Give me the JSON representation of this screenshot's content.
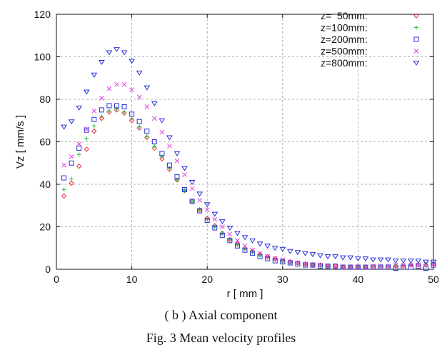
{
  "chart_data": {
    "type": "scatter",
    "xlabel": "r [ mm ]",
    "ylabel": "Vz [ mm/s ]",
    "xlim": [
      0,
      50
    ],
    "ylim": [
      0,
      120
    ],
    "xticks": [
      0,
      10,
      20,
      30,
      40,
      50
    ],
    "yticks": [
      0,
      20,
      40,
      60,
      80,
      100,
      120
    ],
    "grid": true,
    "legend_position": "top-right",
    "series": [
      {
        "name": "z=  50mm:",
        "marker": "diamond",
        "color": "#e8323c",
        "points": [
          [
            1,
            34.5
          ],
          [
            2,
            40.5
          ],
          [
            3,
            48.5
          ],
          [
            4,
            56.5
          ],
          [
            5,
            65
          ],
          [
            6,
            71
          ],
          [
            7,
            74
          ],
          [
            8,
            75
          ],
          [
            9,
            73.5
          ],
          [
            10,
            70
          ],
          [
            11,
            66.5
          ],
          [
            12,
            62
          ],
          [
            13,
            57
          ],
          [
            14,
            52
          ],
          [
            15,
            47
          ],
          [
            16,
            42
          ],
          [
            17,
            37
          ],
          [
            18,
            32
          ],
          [
            19,
            28
          ],
          [
            20,
            24
          ],
          [
            21,
            20.5
          ],
          [
            22,
            17
          ],
          [
            23,
            14
          ],
          [
            24,
            12
          ],
          [
            25,
            10
          ],
          [
            26,
            8.5
          ],
          [
            27,
            7
          ],
          [
            28,
            6
          ],
          [
            29,
            5
          ],
          [
            30,
            4
          ],
          [
            31,
            3.5
          ],
          [
            32,
            3
          ],
          [
            33,
            2.5
          ],
          [
            34,
            2
          ],
          [
            35,
            2
          ],
          [
            36,
            1.5
          ],
          [
            37,
            1.5
          ],
          [
            38,
            1
          ],
          [
            39,
            1
          ],
          [
            40,
            1
          ],
          [
            41,
            1
          ],
          [
            42,
            1
          ],
          [
            43,
            1
          ],
          [
            44,
            1
          ],
          [
            45,
            1.5
          ],
          [
            46,
            1.5
          ],
          [
            47,
            2
          ],
          [
            48,
            2
          ],
          [
            49,
            2
          ],
          [
            50,
            2.5
          ]
        ]
      },
      {
        "name": "z=100mm:",
        "marker": "plus",
        "color": "#22c03c",
        "points": [
          [
            1,
            37.5
          ],
          [
            2,
            42.5
          ],
          [
            3,
            54
          ],
          [
            4,
            61.5
          ],
          [
            5,
            67.5
          ],
          [
            6,
            72
          ],
          [
            7,
            74.5
          ],
          [
            8,
            75.5
          ],
          [
            9,
            74
          ],
          [
            10,
            71
          ],
          [
            11,
            67
          ],
          [
            12,
            62.5
          ],
          [
            13,
            58
          ],
          [
            14,
            53
          ],
          [
            15,
            47.5
          ],
          [
            16,
            42
          ],
          [
            17,
            37
          ],
          [
            18,
            32
          ],
          [
            19,
            28
          ],
          [
            20,
            24
          ],
          [
            21,
            20
          ],
          [
            22,
            17
          ],
          [
            23,
            14
          ],
          [
            24,
            11.5
          ],
          [
            25,
            9.5
          ],
          [
            26,
            8
          ],
          [
            27,
            6.5
          ],
          [
            28,
            5.5
          ],
          [
            29,
            4.5
          ],
          [
            30,
            4
          ],
          [
            31,
            3
          ],
          [
            32,
            2.5
          ],
          [
            33,
            2
          ],
          [
            34,
            2
          ],
          [
            35,
            1.5
          ],
          [
            36,
            1.5
          ],
          [
            37,
            0.5
          ],
          [
            38,
            1
          ],
          [
            39,
            1
          ],
          [
            40,
            1
          ],
          [
            41,
            1
          ],
          [
            42,
            1.5
          ],
          [
            43,
            1.5
          ],
          [
            44,
            1.5
          ],
          [
            45,
            2
          ],
          [
            46,
            2
          ],
          [
            47,
            2
          ],
          [
            48,
            2.5
          ],
          [
            49,
            2.5
          ],
          [
            50,
            3
          ]
        ]
      },
      {
        "name": "z=200mm:",
        "marker": "square",
        "color": "#2430d8",
        "points": [
          [
            1,
            43
          ],
          [
            2,
            50
          ],
          [
            3,
            57
          ],
          [
            4,
            65.5
          ],
          [
            5,
            70.5
          ],
          [
            6,
            75
          ],
          [
            7,
            77
          ],
          [
            8,
            77
          ],
          [
            9,
            76.5
          ],
          [
            10,
            73
          ],
          [
            11,
            69.5
          ],
          [
            12,
            65
          ],
          [
            13,
            60
          ],
          [
            14,
            54.5
          ],
          [
            15,
            49
          ],
          [
            16,
            43.5
          ],
          [
            17,
            37.5
          ],
          [
            18,
            32
          ],
          [
            19,
            27.5
          ],
          [
            20,
            23
          ],
          [
            21,
            19.5
          ],
          [
            22,
            16
          ],
          [
            23,
            13.5
          ],
          [
            24,
            11
          ],
          [
            25,
            9
          ],
          [
            26,
            7.5
          ],
          [
            27,
            6
          ],
          [
            28,
            5
          ],
          [
            29,
            4
          ],
          [
            30,
            3.5
          ],
          [
            31,
            3
          ],
          [
            32,
            2.5
          ],
          [
            33,
            2
          ],
          [
            34,
            2
          ],
          [
            35,
            1.5
          ],
          [
            36,
            1.5
          ],
          [
            37,
            1.5
          ],
          [
            38,
            1
          ],
          [
            39,
            1
          ],
          [
            40,
            1
          ],
          [
            41,
            1
          ],
          [
            42,
            1
          ],
          [
            43,
            1
          ],
          [
            44,
            1
          ],
          [
            45,
            0.5
          ],
          [
            46,
            1
          ],
          [
            47,
            1
          ],
          [
            48,
            1.5
          ],
          [
            49,
            0.5
          ],
          [
            50,
            2
          ]
        ]
      },
      {
        "name": "z=500mm:",
        "marker": "cross",
        "color": "#e040e0",
        "points": [
          [
            1,
            49
          ],
          [
            2,
            53
          ],
          [
            3,
            59
          ],
          [
            4,
            66
          ],
          [
            5,
            74.5
          ],
          [
            6,
            80.5
          ],
          [
            7,
            85
          ],
          [
            8,
            87
          ],
          [
            9,
            87
          ],
          [
            10,
            84.5
          ],
          [
            11,
            81
          ],
          [
            12,
            76.5
          ],
          [
            13,
            71
          ],
          [
            14,
            64.5
          ],
          [
            15,
            58
          ],
          [
            16,
            51
          ],
          [
            17,
            44.5
          ],
          [
            18,
            38
          ],
          [
            19,
            32.5
          ],
          [
            20,
            28
          ],
          [
            21,
            23.5
          ],
          [
            22,
            20
          ],
          [
            23,
            16.5
          ],
          [
            24,
            13.5
          ],
          [
            25,
            11
          ],
          [
            26,
            9
          ],
          [
            27,
            7.5
          ],
          [
            28,
            6
          ],
          [
            29,
            5
          ],
          [
            30,
            4.5
          ],
          [
            31,
            3.5
          ],
          [
            32,
            3
          ],
          [
            33,
            2.5
          ],
          [
            34,
            2
          ],
          [
            35,
            2
          ],
          [
            36,
            1.5
          ],
          [
            37,
            1.5
          ],
          [
            38,
            1
          ],
          [
            39,
            1
          ],
          [
            40,
            1
          ],
          [
            41,
            1
          ],
          [
            42,
            1.5
          ],
          [
            43,
            1.5
          ],
          [
            44,
            1.5
          ],
          [
            45,
            2
          ],
          [
            46,
            2
          ],
          [
            47,
            2
          ],
          [
            48,
            2
          ],
          [
            49,
            2.5
          ],
          [
            50,
            2.5
          ]
        ]
      },
      {
        "name": "z=800mm:",
        "marker": "triangle-down",
        "color": "#2430d8",
        "points": [
          [
            1,
            67
          ],
          [
            2,
            69.5
          ],
          [
            3,
            76
          ],
          [
            4,
            83.5
          ],
          [
            5,
            91.5
          ],
          [
            6,
            97.5
          ],
          [
            7,
            102
          ],
          [
            8,
            103.5
          ],
          [
            9,
            102
          ],
          [
            10,
            98
          ],
          [
            11,
            92.5
          ],
          [
            12,
            85.5
          ],
          [
            13,
            78
          ],
          [
            14,
            70
          ],
          [
            15,
            62
          ],
          [
            16,
            54.5
          ],
          [
            17,
            47.5
          ],
          [
            18,
            41
          ],
          [
            19,
            35.5
          ],
          [
            20,
            30.5
          ],
          [
            21,
            26
          ],
          [
            22,
            22.5
          ],
          [
            23,
            19.5
          ],
          [
            24,
            17
          ],
          [
            25,
            15
          ],
          [
            26,
            13.5
          ],
          [
            27,
            12
          ],
          [
            28,
            11
          ],
          [
            29,
            10
          ],
          [
            30,
            9.5
          ],
          [
            31,
            8.5
          ],
          [
            32,
            8
          ],
          [
            33,
            7.5
          ],
          [
            34,
            7
          ],
          [
            35,
            6.5
          ],
          [
            36,
            6
          ],
          [
            37,
            6
          ],
          [
            38,
            5.5
          ],
          [
            39,
            5.5
          ],
          [
            40,
            5
          ],
          [
            41,
            5
          ],
          [
            42,
            4.5
          ],
          [
            43,
            4.5
          ],
          [
            44,
            4.5
          ],
          [
            45,
            4
          ],
          [
            46,
            4
          ],
          [
            47,
            4
          ],
          [
            48,
            4
          ],
          [
            49,
            3.5
          ],
          [
            50,
            3.5
          ]
        ]
      }
    ]
  },
  "captions": {
    "subcaption": "( b ) Axial component",
    "figure": "Fig. 3 Mean velocity profiles"
  }
}
